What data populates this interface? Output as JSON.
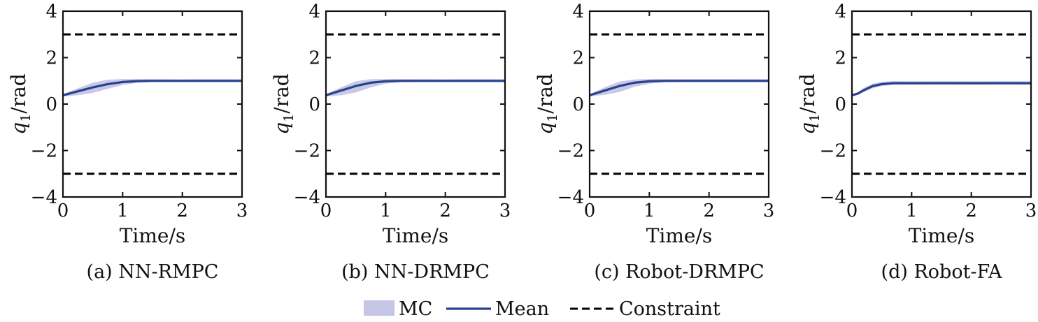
{
  "chart_data": [
    {
      "type": "line",
      "caption": "(a) NN-RMPC",
      "xlabel": "Time/s",
      "ylabel_symbol": "q",
      "ylabel_subscript": "1",
      "ylabel_unit": "/rad",
      "xlim": [
        0,
        3
      ],
      "ylim": [
        -4,
        4
      ],
      "xticks": [
        "0",
        "1",
        "2",
        "3"
      ],
      "yticks": [
        "−4",
        "−2",
        "0",
        "2",
        "4"
      ],
      "constraints": [
        3,
        -3
      ],
      "series": [
        {
          "name": "Mean",
          "x": [
            0,
            0.25,
            0.5,
            0.75,
            1.0,
            1.25,
            1.5,
            2.0,
            2.5,
            3.0
          ],
          "y": [
            0.38,
            0.55,
            0.72,
            0.86,
            0.95,
            0.99,
            1.0,
            1.0,
            1.0,
            1.0
          ]
        },
        {
          "name": "MC",
          "x": [
            0,
            0.25,
            0.5,
            0.75,
            1.0,
            1.25,
            1.5,
            2.0,
            2.5,
            3.0
          ],
          "lower": [
            0.33,
            0.38,
            0.48,
            0.66,
            0.82,
            0.92,
            0.95,
            0.95,
            0.95,
            0.95
          ],
          "upper": [
            0.43,
            0.68,
            0.92,
            1.05,
            1.08,
            1.08,
            1.08,
            1.07,
            1.08,
            1.07
          ]
        }
      ]
    },
    {
      "type": "line",
      "caption": "(b) NN-DRMPC",
      "xlabel": "Time/s",
      "ylabel_symbol": "q",
      "ylabel_subscript": "1",
      "ylabel_unit": "/rad",
      "xlim": [
        0,
        3
      ],
      "ylim": [
        -4,
        4
      ],
      "xticks": [
        "0",
        "1",
        "2",
        "3"
      ],
      "yticks": [
        "−4",
        "−2",
        "0",
        "2",
        "4"
      ],
      "constraints": [
        3,
        -3
      ],
      "series": [
        {
          "name": "Mean",
          "x": [
            0,
            0.25,
            0.5,
            0.75,
            1.0,
            1.25,
            1.5,
            2.0,
            2.5,
            3.0
          ],
          "y": [
            0.38,
            0.58,
            0.78,
            0.92,
            0.98,
            1.0,
            1.0,
            1.0,
            1.0,
            1.0
          ]
        },
        {
          "name": "MC",
          "x": [
            0,
            0.25,
            0.5,
            0.75,
            1.0,
            1.25,
            1.5,
            2.0,
            2.5,
            3.0
          ],
          "lower": [
            0.33,
            0.38,
            0.5,
            0.72,
            0.88,
            0.94,
            0.95,
            0.95,
            0.95,
            0.95
          ],
          "upper": [
            0.43,
            0.72,
            0.98,
            1.07,
            1.08,
            1.08,
            1.08,
            1.07,
            1.08,
            1.07
          ]
        }
      ]
    },
    {
      "type": "line",
      "caption": "(c) Robot-DRMPC",
      "xlabel": "Time/s",
      "ylabel_symbol": "q",
      "ylabel_subscript": "1",
      "ylabel_unit": "/rad",
      "xlim": [
        0,
        3
      ],
      "ylim": [
        -4,
        4
      ],
      "xticks": [
        "0",
        "1",
        "2",
        "3"
      ],
      "yticks": [
        "−4",
        "−2",
        "0",
        "2",
        "4"
      ],
      "constraints": [
        3,
        -3
      ],
      "series": [
        {
          "name": "Mean",
          "x": [
            0,
            0.25,
            0.5,
            0.75,
            1.0,
            1.25,
            1.5,
            2.0,
            2.5,
            3.0
          ],
          "y": [
            0.38,
            0.58,
            0.78,
            0.92,
            0.98,
            1.0,
            1.0,
            1.0,
            1.0,
            1.0
          ]
        },
        {
          "name": "MC",
          "x": [
            0,
            0.25,
            0.5,
            0.75,
            1.0,
            1.25,
            1.5,
            2.0,
            2.5,
            3.0
          ],
          "lower": [
            0.33,
            0.4,
            0.52,
            0.74,
            0.88,
            0.94,
            0.95,
            0.95,
            0.95,
            0.95
          ],
          "upper": [
            0.43,
            0.72,
            0.97,
            1.06,
            1.08,
            1.08,
            1.08,
            1.08,
            1.08,
            1.07
          ]
        }
      ]
    },
    {
      "type": "line",
      "caption": "(d) Robot-FA",
      "xlabel": "Time/s",
      "ylabel_symbol": "q",
      "ylabel_subscript": "1",
      "ylabel_unit": "/rad",
      "xlim": [
        0,
        3
      ],
      "ylim": [
        -4,
        4
      ],
      "xticks": [
        "0",
        "1",
        "2",
        "3"
      ],
      "yticks": [
        "−4",
        "−2",
        "0",
        "2",
        "4"
      ],
      "constraints": [
        3,
        -3
      ],
      "series": [
        {
          "name": "Mean",
          "x": [
            0,
            0.1,
            0.2,
            0.35,
            0.5,
            0.7,
            1.0,
            1.5,
            2.0,
            2.5,
            3.0
          ],
          "y": [
            0.38,
            0.45,
            0.6,
            0.78,
            0.86,
            0.9,
            0.9,
            0.9,
            0.9,
            0.9,
            0.9
          ]
        },
        {
          "name": "MC",
          "x": [
            0,
            0.1,
            0.2,
            0.35,
            0.5,
            0.7,
            1.0,
            1.5,
            2.0,
            2.5,
            3.0
          ],
          "lower": [
            0.33,
            0.4,
            0.52,
            0.68,
            0.78,
            0.83,
            0.84,
            0.84,
            0.84,
            0.84,
            0.84
          ],
          "upper": [
            0.43,
            0.52,
            0.7,
            0.88,
            0.96,
            0.99,
            0.98,
            0.99,
            0.98,
            0.99,
            0.98
          ]
        }
      ]
    }
  ],
  "legend": {
    "placement": "bottom-center",
    "items": [
      {
        "label": "MC",
        "kind": "band"
      },
      {
        "label": "Mean",
        "kind": "line"
      },
      {
        "label": "Constraint",
        "kind": "dashed"
      }
    ]
  },
  "colors": {
    "band": "#c5c5e6",
    "mean": "#27418f",
    "constraint": "#000000",
    "axis": "#111111"
  }
}
